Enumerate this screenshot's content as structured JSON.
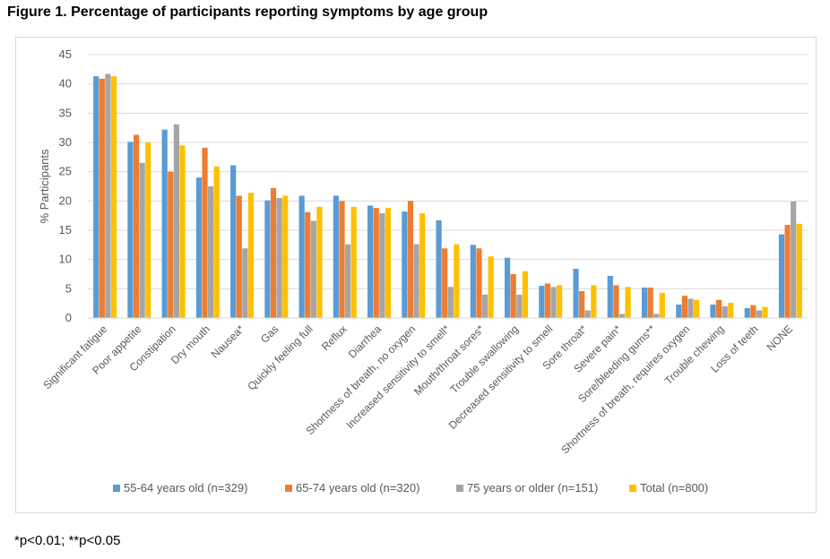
{
  "figure": {
    "title": "Figure 1. Percentage of participants reporting symptoms by age group",
    "footnote": "*p<0.01; **p<0.05"
  },
  "chart_data": {
    "type": "bar",
    "title": "",
    "xlabel": "",
    "ylabel": "% Participants",
    "ylim": [
      0,
      45
    ],
    "yticks": [
      0,
      5,
      10,
      15,
      20,
      25,
      30,
      35,
      40,
      45
    ],
    "grid": "horizontal",
    "legend_position": "bottom",
    "categories": [
      "Significant fatigue",
      "Poor appetite",
      "Constipation",
      "Dry mouth",
      "Nausea*",
      "Gas",
      "Quickly feeling full",
      "Reflux",
      "Diarrhea",
      "Shortness of breath, no oxygen",
      "Increased sensitivity to smell*",
      "Mouth/throat sores*",
      "Trouble swallowing",
      "Decreased sensitivity to smell",
      "Sore throat*",
      "Severe pain*",
      "Sore/bleeding gums**",
      "Shortness of breath, requires oxygen",
      "Trouble chewing",
      "Loss of teeth",
      "NONE"
    ],
    "series": [
      {
        "name": "55-64 years old (n=329)",
        "color": "#5b9bd5",
        "values": [
          41.3,
          30.1,
          32.2,
          24.0,
          26.1,
          20.1,
          20.9,
          20.9,
          19.2,
          18.2,
          16.7,
          12.5,
          10.3,
          5.5,
          8.4,
          7.2,
          5.2,
          2.3,
          2.3,
          1.7,
          14.3
        ]
      },
      {
        "name": "65-74 years old (n=320)",
        "color": "#ed7d31",
        "values": [
          40.9,
          31.3,
          25.0,
          29.1,
          20.9,
          22.2,
          18.1,
          20.0,
          18.8,
          20.0,
          11.9,
          11.9,
          7.5,
          5.9,
          4.6,
          5.6,
          5.2,
          3.8,
          3.1,
          2.2,
          15.9
        ]
      },
      {
        "name": "75 years or older (n=151)",
        "color": "#a5a5a5",
        "values": [
          41.7,
          26.5,
          33.1,
          22.5,
          11.9,
          20.5,
          16.6,
          12.6,
          17.9,
          12.6,
          5.3,
          4.0,
          4.0,
          5.3,
          1.3,
          0.7,
          0.7,
          3.3,
          2.0,
          1.3,
          19.9
        ]
      },
      {
        "name": "Total (n=800)",
        "color": "#ffc000",
        "values": [
          41.3,
          30.0,
          29.5,
          25.9,
          21.4,
          20.9,
          19.0,
          19.0,
          18.8,
          17.9,
          12.6,
          10.5,
          8.0,
          5.6,
          5.6,
          5.3,
          4.3,
          3.1,
          2.6,
          1.9,
          16.1
        ]
      }
    ]
  }
}
